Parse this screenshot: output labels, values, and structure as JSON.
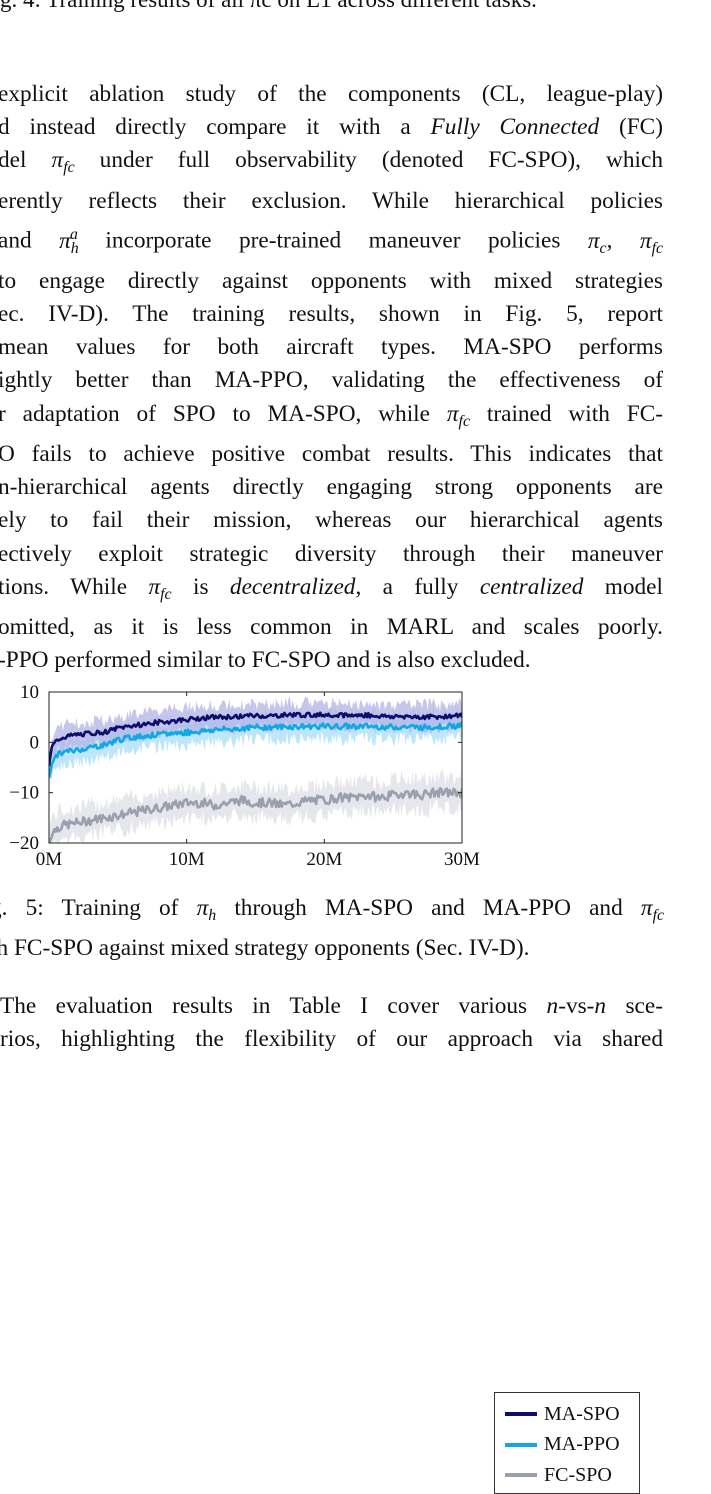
{
  "top_caption": {
    "text": "g. 4: Training results of all πc on L1 across different tasks."
  },
  "para1": {
    "l1": "explicit ablation study of the components (CL, league-play)",
    "l2a": "d instead directly compare it with a ",
    "l2b": "Fully Connected",
    "l2c": " (FC)",
    "l3a": "del ",
    "l3b": " under full observability (denoted FC-SPO), which",
    "l4": "erently reflects their exclusion. While hierarchical policies",
    "l5a": "and ",
    "l5b": " incorporate pre-trained maneuver policies ",
    "l5c": ", ",
    "l6": "to engage directly against opponents with mixed strategies",
    "l7": "ec. IV-D). The training results, shown in Fig. 5, report",
    "l8": "mean values for both aircraft types. MA-SPO performs",
    "l9": "ightly better than MA-PPO, validating the effectiveness of",
    "l10a": "r adaptation of SPO to MA-SPO, while ",
    "l10b": " trained with FC-",
    "l11": "O fails to achieve positive combat results. This indicates that",
    "l12": "n-hierarchical agents directly engaging strong opponents are",
    "l13": "ely to fail their mission, whereas our hierarchical agents",
    "l14": "ectively exploit strategic diversity through their maneuver",
    "l15a": "tions. While ",
    "l15b": " is ",
    "l15c": "decentralized",
    "l15d": ", a fully ",
    "l15e": "centralized",
    "l15f": " model",
    "l16": "omitted, as it is less common in MARL and scales poorly.",
    "l17": "-PPO performed similar to FC-SPO and is also excluded."
  },
  "math": {
    "pi": "π",
    "fc": "fc",
    "h": "h",
    "a": "a",
    "c": "c"
  },
  "chart_data": {
    "type": "line",
    "title": "",
    "xlabel": "",
    "ylabel": "",
    "xlim": [
      0,
      30
    ],
    "ylim": [
      -20,
      10
    ],
    "x_ticks": [
      0,
      10,
      20,
      30
    ],
    "x_tick_labels": [
      "0M",
      "10M",
      "20M",
      "30M"
    ],
    "y_ticks": [
      -20,
      -10,
      0,
      10
    ],
    "y_tick_labels": [
      "−20",
      "−10",
      "0",
      "10"
    ],
    "legend_position": "right, outside plot",
    "series": [
      {
        "name": "MA-SPO",
        "color": "#0d0d6e",
        "band_color": "#b3b3e6",
        "x": [
          0,
          0.2,
          0.6,
          1,
          2,
          3,
          4,
          5,
          6,
          7,
          8,
          9,
          10,
          11,
          12,
          13,
          14,
          15,
          16,
          17,
          18,
          19,
          20,
          21,
          22,
          23,
          24,
          25,
          26,
          27,
          28,
          29,
          30
        ],
        "y": [
          -5,
          -1,
          0.5,
          1,
          1.5,
          1.8,
          2,
          2.8,
          3.3,
          3.6,
          4,
          4.2,
          4.5,
          4.8,
          5,
          5,
          5.2,
          5.3,
          5.2,
          5.4,
          5.5,
          5.4,
          5.5,
          5.5,
          5.3,
          5.4,
          5.2,
          5.1,
          5.2,
          5.0,
          5.1,
          5.2,
          5.3
        ]
      },
      {
        "name": "MA-PPO",
        "color": "#12a8e6",
        "band_color": "#a9ddf5",
        "x": [
          0,
          0.2,
          0.6,
          1,
          2,
          3,
          4,
          5,
          6,
          7,
          8,
          9,
          10,
          11,
          12,
          13,
          14,
          15,
          16,
          17,
          18,
          19,
          20,
          21,
          22,
          23,
          24,
          25,
          26,
          27,
          28,
          29,
          30
        ],
        "y": [
          -7,
          -4,
          -2.5,
          -2,
          -1.5,
          -1,
          -0.5,
          0.5,
          1,
          1.3,
          1.5,
          1.8,
          2,
          2.2,
          2.5,
          2.6,
          2.8,
          3,
          3,
          3.1,
          3.1,
          3.2,
          3.2,
          3.1,
          3.2,
          3.2,
          3.1,
          3.0,
          3.1,
          3.0,
          3.1,
          3.2,
          3.3
        ]
      },
      {
        "name": "FC-SPO",
        "color": "#9aa0ac",
        "band_color": "#dcdfe5",
        "x": [
          0,
          0.2,
          0.6,
          1,
          2,
          3,
          4,
          5,
          6,
          7,
          8,
          9,
          10,
          11,
          12,
          13,
          14,
          15,
          16,
          17,
          18,
          19,
          20,
          21,
          22,
          23,
          24,
          25,
          26,
          27,
          28,
          29,
          30
        ],
        "y": [
          -20,
          -18,
          -17,
          -16.5,
          -16,
          -15.5,
          -15,
          -14.5,
          -14,
          -13.5,
          -13,
          -12.5,
          -12,
          -12,
          -12.5,
          -12,
          -11.5,
          -12,
          -12,
          -12.5,
          -12,
          -11.5,
          -11.5,
          -11,
          -11,
          -10.5,
          -11,
          -10.5,
          -10,
          -10.5,
          -10,
          -10,
          -10
        ]
      }
    ]
  },
  "caption": {
    "l1a": "g. 5: Training of ",
    "l1b": " through MA-SPO and MA-PPO and ",
    "l2": "th FC-SPO against mixed strategy opponents (Sec. IV-D)."
  },
  "para2": {
    "l1a": "The evaluation results in Table I cover various ",
    "n": "n",
    "vs": "-vs-",
    "l1b": " sce-",
    "l2": "rios, highlighting the flexibility of our approach via shared"
  }
}
